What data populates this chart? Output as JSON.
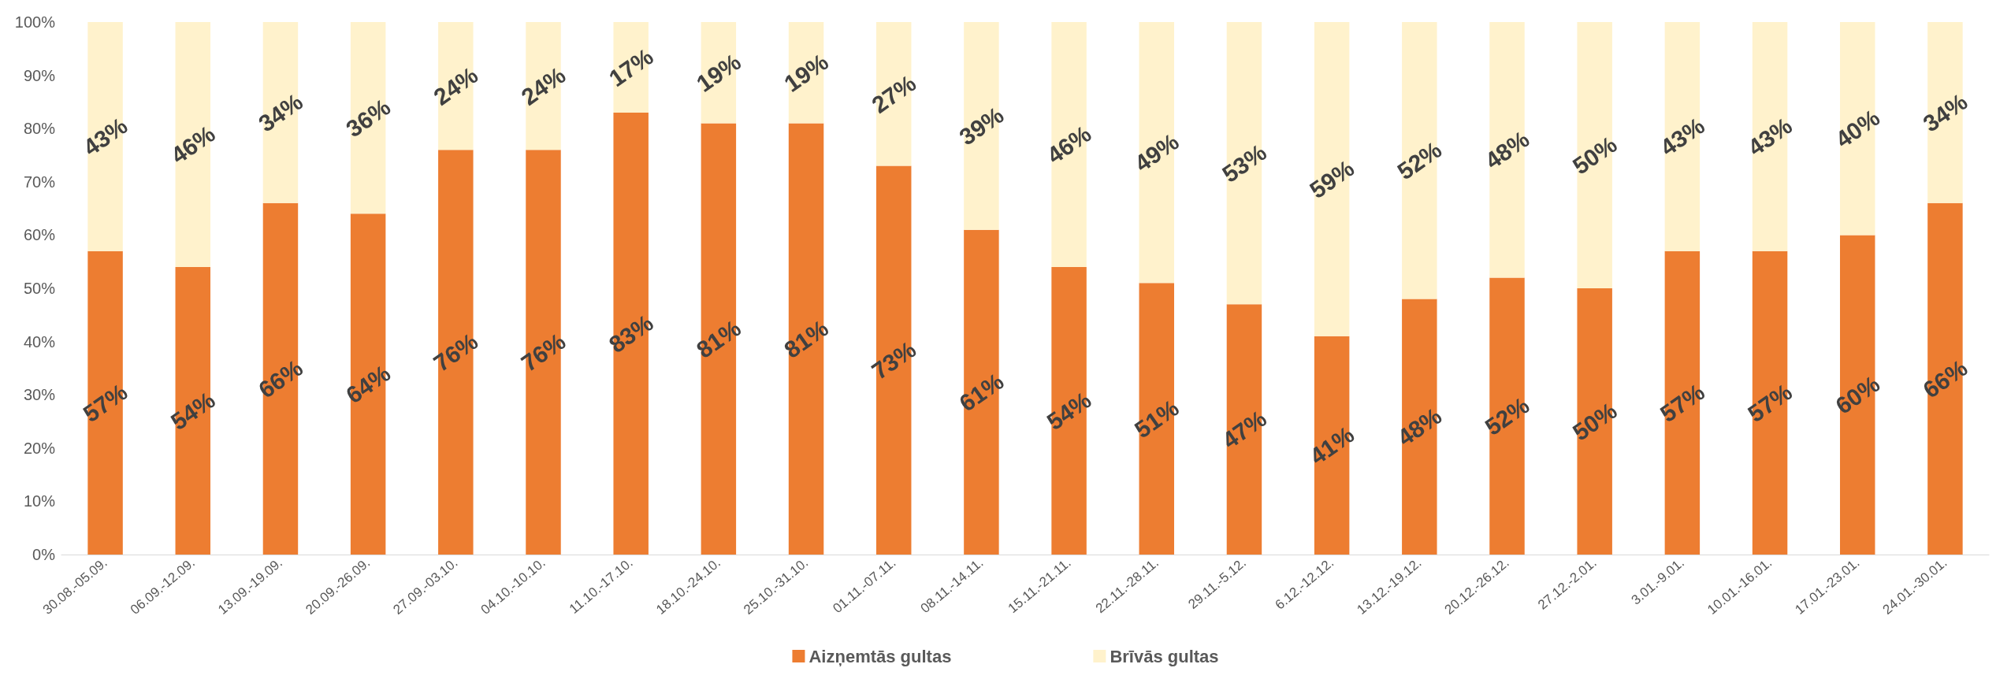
{
  "chart_data": {
    "type": "bar",
    "stacked": true,
    "categories": [
      "30.08.-05.09.",
      "06.09.-12.09.",
      "13.09.-19.09.",
      "20.09.-26.09.",
      "27.09.-03.10.",
      "04.10.-10.10.",
      "11.10.-17.10.",
      "18.10.-24.10.",
      "25.10.-31.10.",
      "01.11.-07.11.",
      "08.11.-14.11.",
      "15.11.-21.11.",
      "22.11.-28.11.",
      "29.11.-5.12.",
      "6.12.-12.12.",
      "13.12.-19.12.",
      "20.12.-26.12.",
      "27.12.-2.01.",
      "3.01.-9.01.",
      "10.01.-16.01.",
      "17.01.-23.01.",
      "24.01.-30.01."
    ],
    "series": [
      {
        "name": "Aizņemtās gultas",
        "color": "#ed7d31",
        "values": [
          57,
          54,
          66,
          64,
          76,
          76,
          83,
          81,
          81,
          73,
          61,
          54,
          51,
          47,
          41,
          48,
          52,
          50,
          57,
          57,
          60,
          66
        ],
        "value_labels": [
          "57%",
          "54%",
          "66%",
          "64%",
          "76%",
          "76%",
          "83%",
          "81%",
          "81%",
          "73%",
          "61%",
          "54%",
          "51%",
          "47%",
          "41%",
          "48%",
          "52%",
          "50%",
          "57%",
          "57%",
          "60%",
          "66%"
        ]
      },
      {
        "name": "Brīvās gultas",
        "color": "#fff2cc",
        "values": [
          43,
          46,
          34,
          36,
          24,
          24,
          17,
          19,
          19,
          27,
          39,
          46,
          49,
          53,
          59,
          52,
          48,
          50,
          43,
          43,
          40,
          34
        ],
        "value_labels": [
          "43%",
          "46%",
          "34%",
          "36%",
          "24%",
          "24%",
          "17%",
          "19%",
          "19%",
          "27%",
          "39%",
          "46%",
          "49%",
          "53%",
          "59%",
          "52%",
          "48%",
          "50%",
          "43%",
          "43%",
          "40%",
          "34%"
        ]
      }
    ],
    "ylim": [
      0,
      100
    ],
    "yticks": [
      {
        "value": 0,
        "label": "0%"
      },
      {
        "value": 10,
        "label": "10%"
      },
      {
        "value": 20,
        "label": "20%"
      },
      {
        "value": 30,
        "label": "30%"
      },
      {
        "value": 40,
        "label": "40%"
      },
      {
        "value": 50,
        "label": "50%"
      },
      {
        "value": 60,
        "label": "60%"
      },
      {
        "value": 70,
        "label": "70%"
      },
      {
        "value": 80,
        "label": "80%"
      },
      {
        "value": 90,
        "label": "90%"
      },
      {
        "value": 100,
        "label": "100%"
      }
    ],
    "grid": false,
    "legend": "bottom"
  }
}
